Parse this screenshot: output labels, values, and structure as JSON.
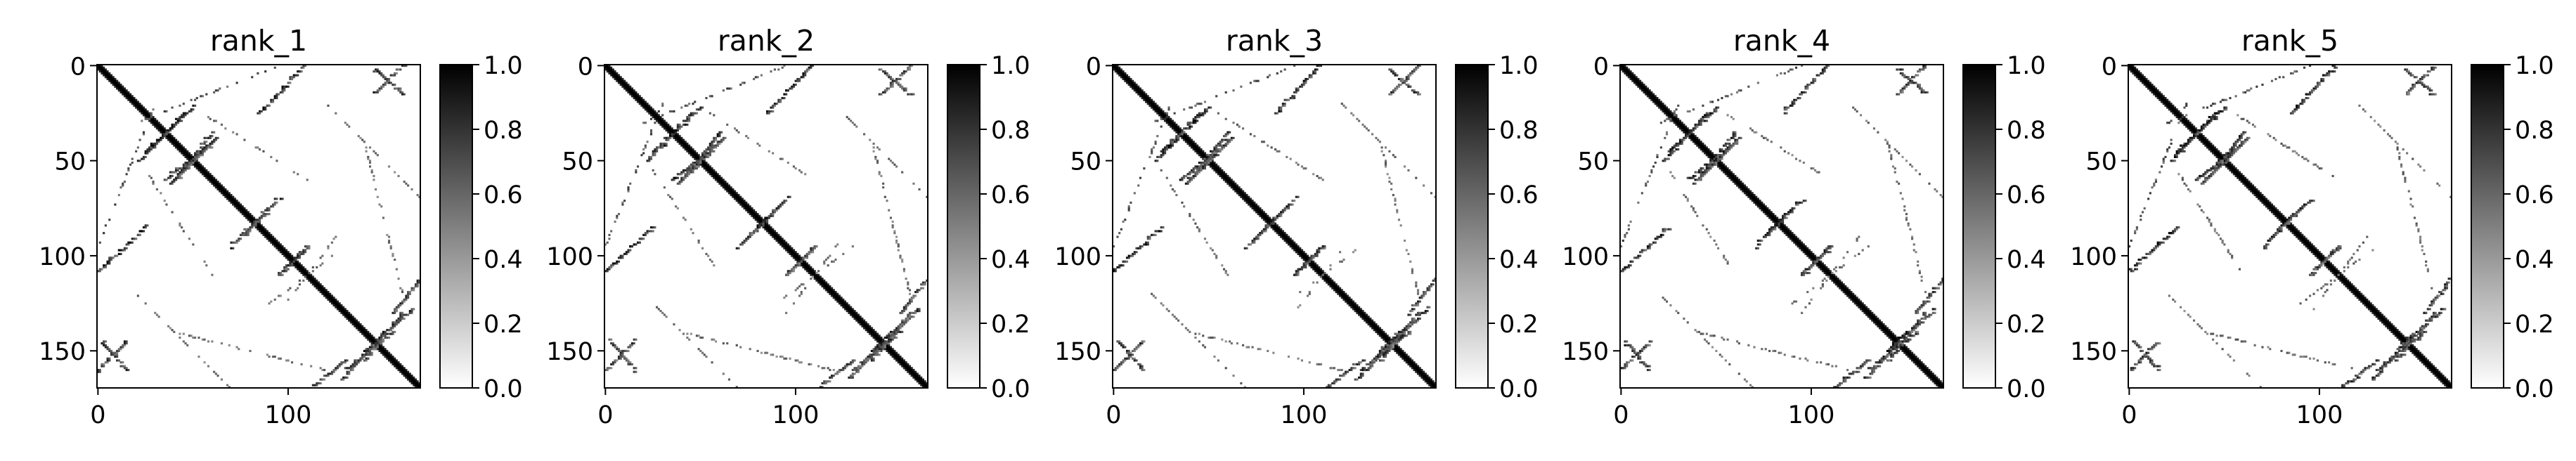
{
  "chart_data": [
    {
      "type": "heatmap",
      "title": "rank_1",
      "matrix_size": 170,
      "xlim": [
        0,
        170
      ],
      "ylim": [
        170,
        0
      ],
      "x_ticks": [
        0,
        100
      ],
      "y_ticks": [
        0,
        50,
        100,
        150
      ],
      "x_tick_labels": [
        "0",
        "100"
      ],
      "y_tick_labels": [
        "0",
        "50",
        "100",
        "150"
      ],
      "colorbar": {
        "range": [
          0.0,
          1.0
        ],
        "ticks": [
          0.0,
          0.2,
          0.4,
          0.6,
          0.8,
          1.0
        ],
        "tick_labels": [
          "0.0",
          "0.2",
          "0.4",
          "0.6",
          "0.8",
          "1.0"
        ],
        "colormap": "gray_r"
      },
      "diagonal_width": 1.6,
      "contacts": [
        {
          "x0": 25,
          "y0": 45,
          "x1": 50,
          "y1": 22,
          "v": 0.9
        },
        {
          "x0": 35,
          "y0": 60,
          "x1": 60,
          "y1": 40,
          "v": 0.85
        },
        {
          "x0": 38,
          "y0": 62,
          "x1": 55,
          "y1": 45,
          "v": 0.8
        },
        {
          "x0": 0,
          "y0": 108,
          "x1": 25,
          "y1": 85,
          "v": 0.9
        },
        {
          "x0": 75,
          "y0": 90,
          "x1": 95,
          "y1": 70,
          "v": 0.85
        },
        {
          "x0": 145,
          "y0": 2,
          "x1": 160,
          "y1": 15,
          "v": 0.8
        },
        {
          "x0": 105,
          "y0": 175,
          "x1": 130,
          "y1": 155,
          "v": 0.8
        },
        {
          "x0": 140,
          "y0": 150,
          "x1": 165,
          "y1": 128,
          "v": 0.85
        },
        {
          "x0": 130,
          "y0": 160,
          "x1": 155,
          "y1": 140,
          "v": 0.8
        },
        {
          "x0": 95,
          "y0": 110,
          "x1": 110,
          "y1": 95,
          "v": 0.8
        },
        {
          "x0": 0,
          "y0": 160,
          "x1": 15,
          "y1": 145,
          "v": 0.8
        }
      ],
      "sparse_arcs": [
        {
          "x0": 0,
          "y0": 95,
          "x1": 30,
          "y1": 20,
          "v": 0.7
        },
        {
          "x0": 55,
          "y0": 25,
          "x1": 110,
          "y1": 60,
          "v": 0.6
        },
        {
          "x0": 20,
          "y0": 120,
          "x1": 70,
          "y1": 170,
          "v": 0.6
        },
        {
          "x0": 90,
          "y0": 125,
          "x1": 130,
          "y1": 95,
          "v": 0.6
        },
        {
          "x0": 140,
          "y0": 40,
          "x1": 160,
          "y1": 120,
          "v": 0.6
        }
      ]
    },
    {
      "type": "heatmap",
      "title": "rank_2",
      "matrix_size": 170,
      "xlim": [
        0,
        170
      ],
      "ylim": [
        170,
        0
      ],
      "x_ticks": [
        0,
        100
      ],
      "y_ticks": [
        0,
        50,
        100,
        150
      ],
      "x_tick_labels": [
        "0",
        "100"
      ],
      "y_tick_labels": [
        "0",
        "50",
        "100",
        "150"
      ],
      "colorbar": {
        "range": [
          0.0,
          1.0
        ],
        "ticks": [
          0.0,
          0.2,
          0.4,
          0.6,
          0.8,
          1.0
        ],
        "tick_labels": [
          "0.0",
          "0.2",
          "0.4",
          "0.6",
          "0.8",
          "1.0"
        ],
        "colormap": "gray_r"
      },
      "diagonal_width": 1.6,
      "contacts": [
        {
          "x0": 25,
          "y0": 45,
          "x1": 50,
          "y1": 22,
          "v": 0.9
        },
        {
          "x0": 35,
          "y0": 60,
          "x1": 60,
          "y1": 40,
          "v": 0.85
        },
        {
          "x0": 38,
          "y0": 62,
          "x1": 55,
          "y1": 45,
          "v": 0.8
        },
        {
          "x0": 0,
          "y0": 108,
          "x1": 25,
          "y1": 85,
          "v": 0.9
        },
        {
          "x0": 75,
          "y0": 90,
          "x1": 95,
          "y1": 70,
          "v": 0.85
        },
        {
          "x0": 145,
          "y0": 2,
          "x1": 160,
          "y1": 15,
          "v": 0.8
        },
        {
          "x0": 105,
          "y0": 175,
          "x1": 130,
          "y1": 155,
          "v": 0.8
        },
        {
          "x0": 140,
          "y0": 150,
          "x1": 165,
          "y1": 128,
          "v": 0.85
        },
        {
          "x0": 130,
          "y0": 160,
          "x1": 155,
          "y1": 140,
          "v": 0.8
        },
        {
          "x0": 95,
          "y0": 110,
          "x1": 110,
          "y1": 95,
          "v": 0.8
        },
        {
          "x0": 0,
          "y0": 160,
          "x1": 15,
          "y1": 145,
          "v": 0.8
        }
      ],
      "sparse_arcs": [
        {
          "x0": 0,
          "y0": 95,
          "x1": 30,
          "y1": 20,
          "v": 0.7
        },
        {
          "x0": 55,
          "y0": 25,
          "x1": 110,
          "y1": 60,
          "v": 0.6
        },
        {
          "x0": 20,
          "y0": 120,
          "x1": 70,
          "y1": 170,
          "v": 0.6
        },
        {
          "x0": 90,
          "y0": 125,
          "x1": 130,
          "y1": 95,
          "v": 0.6
        },
        {
          "x0": 140,
          "y0": 40,
          "x1": 160,
          "y1": 120,
          "v": 0.6
        }
      ]
    },
    {
      "type": "heatmap",
      "title": "rank_3",
      "matrix_size": 170,
      "xlim": [
        0,
        170
      ],
      "ylim": [
        170,
        0
      ],
      "x_ticks": [
        0,
        100
      ],
      "y_ticks": [
        0,
        50,
        100,
        150
      ],
      "x_tick_labels": [
        "0",
        "100"
      ],
      "y_tick_labels": [
        "0",
        "50",
        "100",
        "150"
      ],
      "colorbar": {
        "range": [
          0.0,
          1.0
        ],
        "ticks": [
          0.0,
          0.2,
          0.4,
          0.6,
          0.8,
          1.0
        ],
        "tick_labels": [
          "0.0",
          "0.2",
          "0.4",
          "0.6",
          "0.8",
          "1.0"
        ],
        "colormap": "gray_r"
      },
      "diagonal_width": 1.6,
      "contacts": [
        {
          "x0": 25,
          "y0": 45,
          "x1": 50,
          "y1": 22,
          "v": 0.9
        },
        {
          "x0": 35,
          "y0": 60,
          "x1": 60,
          "y1": 40,
          "v": 0.85
        },
        {
          "x0": 38,
          "y0": 62,
          "x1": 55,
          "y1": 45,
          "v": 0.8
        },
        {
          "x0": 0,
          "y0": 108,
          "x1": 25,
          "y1": 85,
          "v": 0.9
        },
        {
          "x0": 75,
          "y0": 90,
          "x1": 95,
          "y1": 70,
          "v": 0.85
        },
        {
          "x0": 145,
          "y0": 2,
          "x1": 160,
          "y1": 15,
          "v": 0.8
        },
        {
          "x0": 105,
          "y0": 175,
          "x1": 130,
          "y1": 155,
          "v": 0.8
        },
        {
          "x0": 140,
          "y0": 150,
          "x1": 165,
          "y1": 128,
          "v": 0.85
        },
        {
          "x0": 130,
          "y0": 160,
          "x1": 155,
          "y1": 140,
          "v": 0.8
        },
        {
          "x0": 95,
          "y0": 110,
          "x1": 110,
          "y1": 95,
          "v": 0.8
        },
        {
          "x0": 0,
          "y0": 160,
          "x1": 15,
          "y1": 145,
          "v": 0.8
        }
      ],
      "sparse_arcs": [
        {
          "x0": 0,
          "y0": 95,
          "x1": 30,
          "y1": 20,
          "v": 0.7
        },
        {
          "x0": 55,
          "y0": 25,
          "x1": 110,
          "y1": 60,
          "v": 0.6
        },
        {
          "x0": 20,
          "y0": 120,
          "x1": 70,
          "y1": 170,
          "v": 0.6
        },
        {
          "x0": 90,
          "y0": 125,
          "x1": 130,
          "y1": 95,
          "v": 0.6
        },
        {
          "x0": 140,
          "y0": 40,
          "x1": 160,
          "y1": 120,
          "v": 0.6
        }
      ]
    },
    {
      "type": "heatmap",
      "title": "rank_4",
      "matrix_size": 170,
      "xlim": [
        0,
        170
      ],
      "ylim": [
        170,
        0
      ],
      "x_ticks": [
        0,
        100
      ],
      "y_ticks": [
        0,
        50,
        100,
        150
      ],
      "x_tick_labels": [
        "0",
        "100"
      ],
      "y_tick_labels": [
        "0",
        "50",
        "100",
        "150"
      ],
      "colorbar": {
        "range": [
          0.0,
          1.0
        ],
        "ticks": [
          0.0,
          0.2,
          0.4,
          0.6,
          0.8,
          1.0
        ],
        "tick_labels": [
          "0.0",
          "0.2",
          "0.4",
          "0.6",
          "0.8",
          "1.0"
        ],
        "colormap": "gray_r"
      },
      "diagonal_width": 1.6,
      "contacts": [
        {
          "x0": 25,
          "y0": 45,
          "x1": 50,
          "y1": 22,
          "v": 0.9
        },
        {
          "x0": 35,
          "y0": 60,
          "x1": 60,
          "y1": 40,
          "v": 0.85
        },
        {
          "x0": 38,
          "y0": 62,
          "x1": 55,
          "y1": 45,
          "v": 0.8
        },
        {
          "x0": 0,
          "y0": 108,
          "x1": 25,
          "y1": 85,
          "v": 0.9
        },
        {
          "x0": 75,
          "y0": 90,
          "x1": 95,
          "y1": 70,
          "v": 0.85
        },
        {
          "x0": 145,
          "y0": 2,
          "x1": 160,
          "y1": 15,
          "v": 0.8
        },
        {
          "x0": 105,
          "y0": 175,
          "x1": 130,
          "y1": 155,
          "v": 0.8
        },
        {
          "x0": 140,
          "y0": 150,
          "x1": 165,
          "y1": 128,
          "v": 0.85
        },
        {
          "x0": 130,
          "y0": 160,
          "x1": 155,
          "y1": 140,
          "v": 0.8
        },
        {
          "x0": 95,
          "y0": 110,
          "x1": 110,
          "y1": 95,
          "v": 0.8
        },
        {
          "x0": 0,
          "y0": 160,
          "x1": 15,
          "y1": 145,
          "v": 0.8
        }
      ],
      "sparse_arcs": [
        {
          "x0": 0,
          "y0": 95,
          "x1": 30,
          "y1": 20,
          "v": 0.7
        },
        {
          "x0": 55,
          "y0": 25,
          "x1": 110,
          "y1": 60,
          "v": 0.6
        },
        {
          "x0": 20,
          "y0": 120,
          "x1": 70,
          "y1": 170,
          "v": 0.6
        },
        {
          "x0": 90,
          "y0": 125,
          "x1": 130,
          "y1": 95,
          "v": 0.6
        },
        {
          "x0": 140,
          "y0": 40,
          "x1": 160,
          "y1": 120,
          "v": 0.6
        }
      ]
    },
    {
      "type": "heatmap",
      "title": "rank_5",
      "matrix_size": 170,
      "xlim": [
        0,
        170
      ],
      "ylim": [
        170,
        0
      ],
      "x_ticks": [
        0,
        100
      ],
      "y_ticks": [
        0,
        50,
        100,
        150
      ],
      "x_tick_labels": [
        "0",
        "100"
      ],
      "y_tick_labels": [
        "0",
        "50",
        "100",
        "150"
      ],
      "colorbar": {
        "range": [
          0.0,
          1.0
        ],
        "ticks": [
          0.0,
          0.2,
          0.4,
          0.6,
          0.8,
          1.0
        ],
        "tick_labels": [
          "0.0",
          "0.2",
          "0.4",
          "0.6",
          "0.8",
          "1.0"
        ],
        "colormap": "gray_r"
      },
      "diagonal_width": 1.6,
      "contacts": [
        {
          "x0": 25,
          "y0": 45,
          "x1": 50,
          "y1": 22,
          "v": 0.9
        },
        {
          "x0": 35,
          "y0": 60,
          "x1": 60,
          "y1": 40,
          "v": 0.85
        },
        {
          "x0": 38,
          "y0": 62,
          "x1": 55,
          "y1": 45,
          "v": 0.8
        },
        {
          "x0": 0,
          "y0": 108,
          "x1": 25,
          "y1": 85,
          "v": 0.9
        },
        {
          "x0": 75,
          "y0": 90,
          "x1": 95,
          "y1": 70,
          "v": 0.85
        },
        {
          "x0": 145,
          "y0": 2,
          "x1": 160,
          "y1": 15,
          "v": 0.8
        },
        {
          "x0": 105,
          "y0": 175,
          "x1": 130,
          "y1": 155,
          "v": 0.8
        },
        {
          "x0": 140,
          "y0": 150,
          "x1": 165,
          "y1": 128,
          "v": 0.85
        },
        {
          "x0": 130,
          "y0": 160,
          "x1": 155,
          "y1": 140,
          "v": 0.8
        },
        {
          "x0": 95,
          "y0": 110,
          "x1": 110,
          "y1": 95,
          "v": 0.8
        },
        {
          "x0": 0,
          "y0": 160,
          "x1": 15,
          "y1": 145,
          "v": 0.8
        }
      ],
      "sparse_arcs": [
        {
          "x0": 0,
          "y0": 95,
          "x1": 30,
          "y1": 20,
          "v": 0.7
        },
        {
          "x0": 55,
          "y0": 25,
          "x1": 110,
          "y1": 60,
          "v": 0.6
        },
        {
          "x0": 20,
          "y0": 120,
          "x1": 70,
          "y1": 170,
          "v": 0.6
        },
        {
          "x0": 90,
          "y0": 125,
          "x1": 130,
          "y1": 95,
          "v": 0.6
        },
        {
          "x0": 140,
          "y0": 40,
          "x1": 160,
          "y1": 120,
          "v": 0.6
        }
      ]
    }
  ]
}
